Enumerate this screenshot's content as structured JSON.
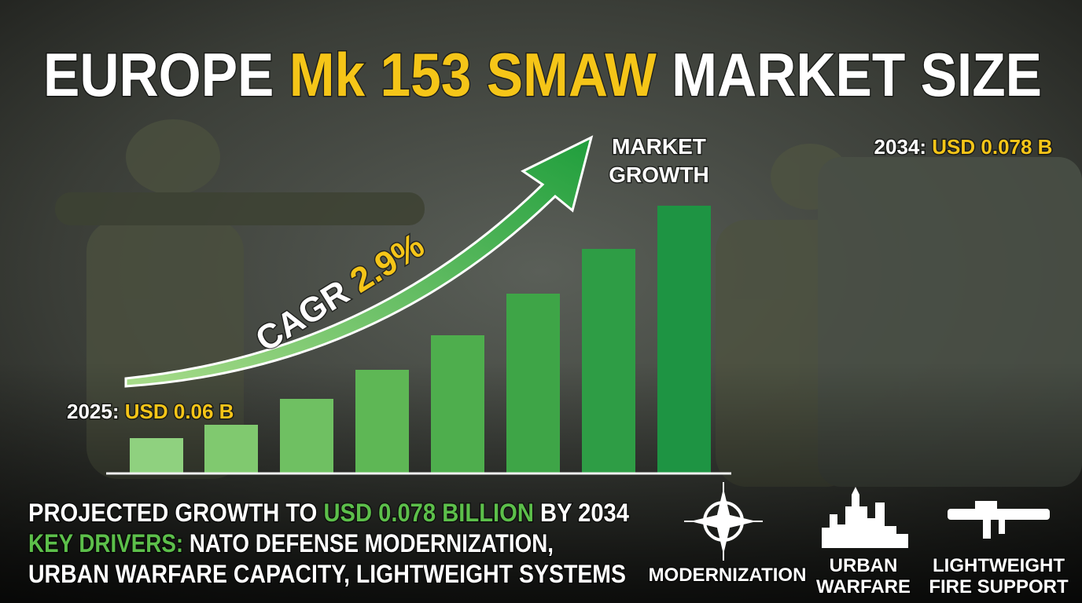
{
  "header": {
    "title": {
      "lead": "EUROPE",
      "highlight": "Mk 153 SMAW",
      "tail": "MARKET SIZE"
    }
  },
  "graphic": {
    "growth_label": [
      "MARKET",
      "GROWTH"
    ],
    "end": {
      "year": "2034:",
      "value": "USD 0.078 B"
    },
    "start": {
      "year": "2025:",
      "value": "USD 0.06 B"
    },
    "cagr": {
      "label": "CAGR",
      "value": "2.9%"
    }
  },
  "summary": {
    "line1": {
      "lead": "PROJECTED GROWTH TO",
      "highlight": "USD 0.078 BILLION",
      "tail": "BY 2034"
    },
    "line2": {
      "highlight": "KEY DRIVERS:",
      "tail": "NATO DEFENSE MODERNIZATION,"
    },
    "line3": "URBAN WARFARE CAPACITY, LIGHTWEIGHT SYSTEMS"
  },
  "icons": [
    {
      "label": [
        "MODERNIZATION"
      ]
    },
    {
      "label": [
        "URBAN",
        "WARFARE"
      ]
    },
    {
      "label": [
        "LIGHTWEIGHT",
        "FIRE SUPPORT"
      ]
    }
  ]
}
